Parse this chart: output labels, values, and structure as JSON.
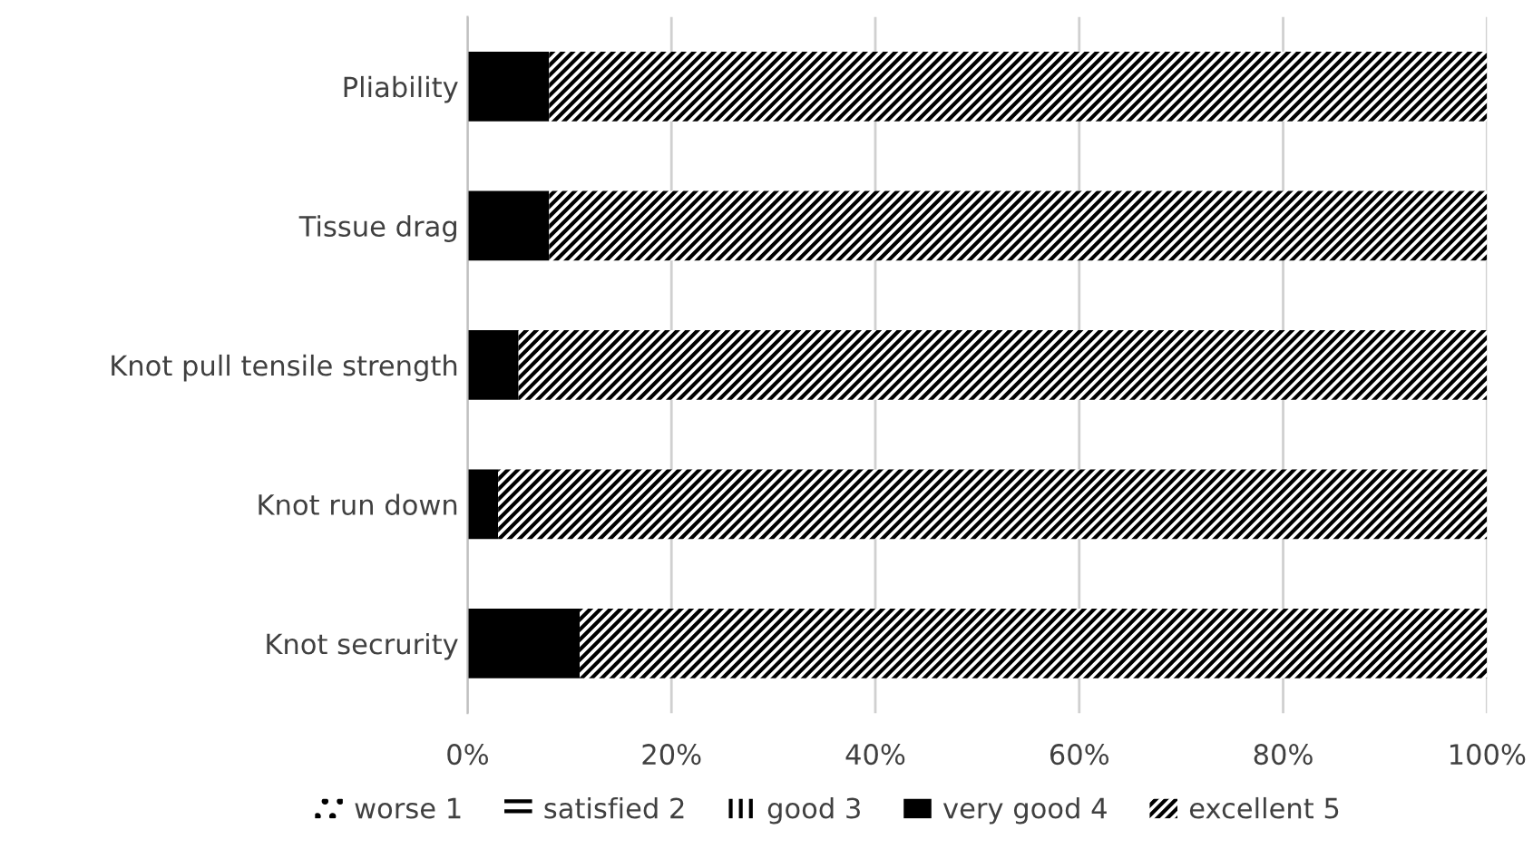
{
  "chart_data": {
    "type": "bar",
    "orientation": "horizontal",
    "stacked": true,
    "categories": [
      "Pliability",
      "Tissue drag",
      "Knot pull tensile strength",
      "Knot run down",
      "Knot secrurity"
    ],
    "series": [
      {
        "name": "worse 1",
        "color": "#ffffff",
        "values": [
          0,
          0,
          0,
          0,
          0
        ]
      },
      {
        "name": "satisfied 2",
        "color": "#ffffff",
        "values": [
          0,
          0,
          0,
          0,
          0
        ]
      },
      {
        "name": "good 3",
        "color": "#ffffff",
        "values": [
          0,
          0,
          0,
          0,
          0
        ]
      },
      {
        "name": "very good 4",
        "color": "#000000",
        "values": [
          8,
          8,
          5,
          3,
          11
        ]
      },
      {
        "name": "excellent 5",
        "color": "#ffffff",
        "values": [
          92,
          92,
          95,
          97,
          89
        ]
      }
    ],
    "xlim": [
      0,
      100
    ],
    "xticks": [
      {
        "value": 0,
        "label": "0%"
      },
      {
        "value": 20,
        "label": "20%"
      },
      {
        "value": 40,
        "label": "40%"
      },
      {
        "value": 60,
        "label": "60%"
      },
      {
        "value": 80,
        "label": "80%"
      },
      {
        "value": 100,
        "label": "100%"
      }
    ],
    "grid": "x",
    "legend": "bottom"
  }
}
